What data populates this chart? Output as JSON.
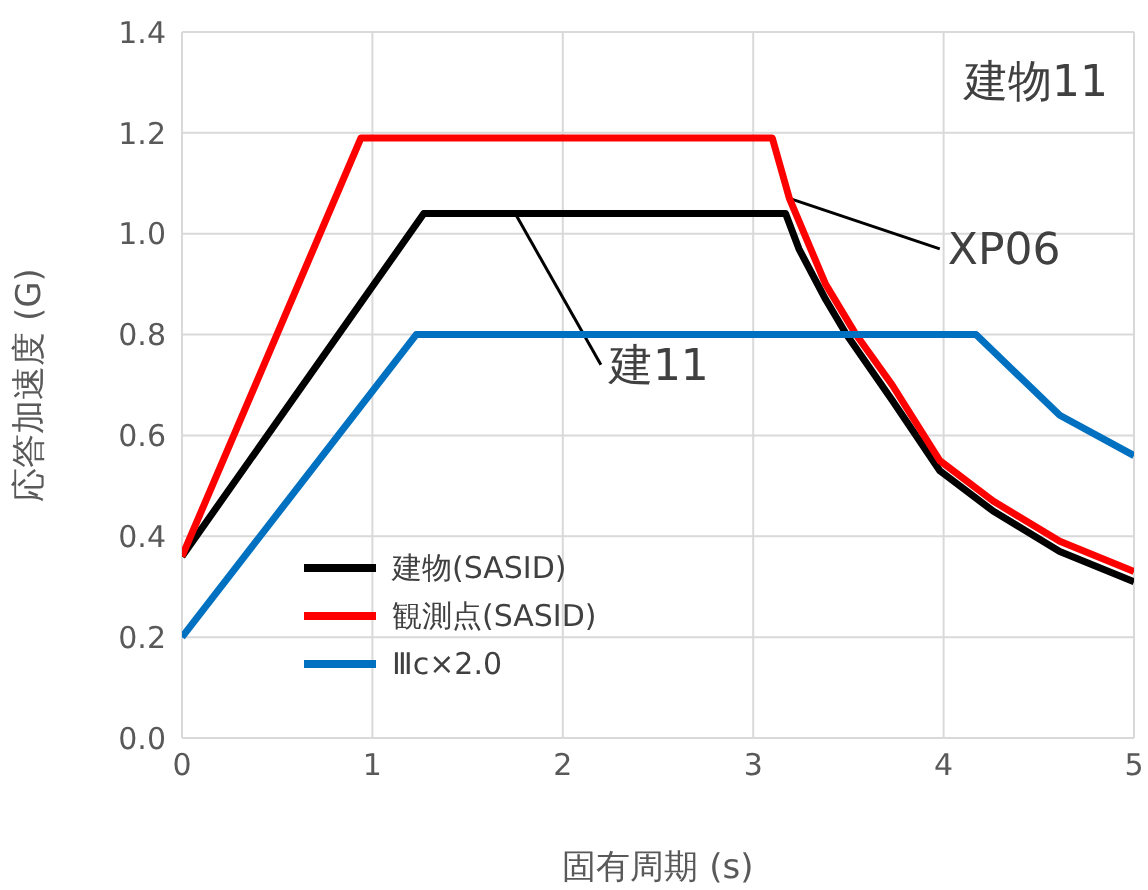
{
  "chart_data": {
    "type": "line",
    "title": "建物11",
    "xlabel": "固有周期 (s)",
    "ylabel": "応答加速度 (G)",
    "xlim": [
      0,
      5
    ],
    "xticks": [
      0,
      1,
      2,
      3,
      4,
      5
    ],
    "ylim": [
      0,
      1.4
    ],
    "yticks": [
      {
        "value": 0,
        "label": "0.0"
      },
      {
        "value": 0.2,
        "label": "0.2"
      },
      {
        "value": 0.4,
        "label": "0.4"
      },
      {
        "value": 0.6,
        "label": "0.6"
      },
      {
        "value": 0.8,
        "label": "0.8"
      },
      {
        "value": 1.0,
        "label": "1.0"
      },
      {
        "value": 1.2,
        "label": "1.2"
      },
      {
        "value": 1.4,
        "label": "1.4"
      }
    ],
    "grid": true,
    "legend": "bottom left",
    "marker": "none",
    "line_style": "solid",
    "series": [
      {
        "name": "建物(SASID)",
        "color": "#000000",
        "x": [
          0,
          1.27,
          3.17,
          3.24,
          3.38,
          3.49,
          3.73,
          3.98,
          4.26,
          4.61,
          5
        ],
        "values": [
          0.36,
          1.04,
          1.04,
          0.97,
          0.87,
          0.8,
          0.67,
          0.53,
          0.45,
          0.37,
          0.31
        ]
      },
      {
        "name": "観測点(SASID)",
        "color": "#ff0000",
        "x": [
          0,
          0.94,
          3.1,
          3.19,
          3.38,
          3.54,
          3.73,
          3.98,
          4.26,
          4.61,
          5
        ],
        "values": [
          0.36,
          1.19,
          1.19,
          1.07,
          0.9,
          0.8,
          0.7,
          0.55,
          0.47,
          0.39,
          0.33
        ]
      },
      {
        "name": "Ⅲc×2.0",
        "color": "#0070c0",
        "x": [
          0,
          1.23,
          4.17,
          4.61,
          5
        ],
        "values": [
          0.2,
          0.8,
          0.8,
          0.64,
          0.56
        ]
      }
    ],
    "annotations": [
      {
        "text": "建11",
        "x": 1.75,
        "y": 1.04
      },
      {
        "text": "XP06",
        "x": 3.19,
        "y": 1.07
      }
    ]
  }
}
